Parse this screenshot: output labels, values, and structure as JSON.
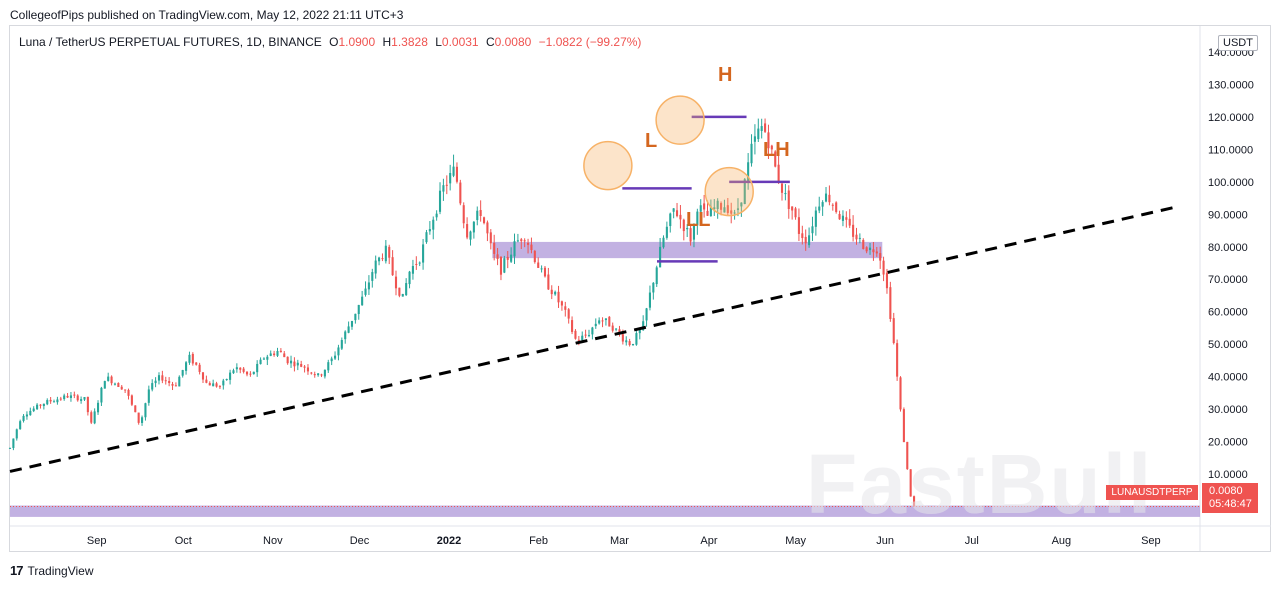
{
  "header": {
    "published_by": "CollegeofPips published on TradingView.com, May 12, 2022 21:11 UTC+3"
  },
  "legend": {
    "symbol": "Luna / TetherUS PERPETUAL FUTURES, 1D, BINANCE",
    "o_label": "O",
    "o_value": "1.0900",
    "h_label": "H",
    "h_value": "1.3828",
    "l_label": "L",
    "l_value": "0.0031",
    "c_label": "C",
    "c_value": "0.0080",
    "change": "−1.0822 (−99.27%)"
  },
  "axis": {
    "currency": "USDT"
  },
  "price_tag": {
    "symbol": "LUNAUSDTPERP",
    "price": "0.0080",
    "countdown": "05:48:47"
  },
  "footer": {
    "brand": "TradingView"
  },
  "watermark": "FastBull",
  "annotations": {
    "h": "H",
    "l": "L",
    "lh": "LH",
    "ll": "LL"
  },
  "colors": {
    "up": "#26a69a",
    "down": "#ef5350",
    "zone": "#b39ddb",
    "level": "#673ab7",
    "circle": "#f7b267",
    "label": "#d4661f"
  },
  "chart_data": {
    "type": "candlestick",
    "title": "Luna / TetherUS PERPETUAL FUTURES, 1D, BINANCE",
    "y_ticks": [
      "140.0000",
      "130.0000",
      "120.0000",
      "110.0000",
      "100.0000",
      "90.0000",
      "80.0000",
      "70.0000",
      "60.0000",
      "50.0000",
      "40.0000",
      "30.0000",
      "20.0000",
      "10.0000"
    ],
    "y_tick_values": [
      140,
      130,
      120,
      110,
      100,
      90,
      80,
      70,
      60,
      50,
      40,
      30,
      20,
      10
    ],
    "ylim": [
      -6,
      148
    ],
    "x_ticks": [
      "Sep",
      "Oct",
      "Nov",
      "Dec",
      "2022",
      "Feb",
      "Mar",
      "Apr",
      "May",
      "Jun",
      "Jul",
      "Aug",
      "Sep"
    ],
    "x_tick_days": [
      30,
      60,
      91,
      121,
      152,
      183,
      211,
      242,
      272,
      303,
      333,
      364,
      395
    ],
    "x_range_days": [
      0,
      412
    ],
    "anchors": [
      [
        0,
        18
      ],
      [
        4,
        28
      ],
      [
        12,
        32
      ],
      [
        20,
        34
      ],
      [
        26,
        33
      ],
      [
        28,
        25
      ],
      [
        33,
        40
      ],
      [
        40,
        36
      ],
      [
        45,
        25
      ],
      [
        48,
        36
      ],
      [
        52,
        40
      ],
      [
        57,
        37
      ],
      [
        62,
        46
      ],
      [
        65,
        43
      ],
      [
        68,
        38
      ],
      [
        73,
        37
      ],
      [
        78,
        43
      ],
      [
        83,
        40
      ],
      [
        88,
        46
      ],
      [
        93,
        48
      ],
      [
        96,
        45
      ],
      [
        102,
        43
      ],
      [
        107,
        40
      ],
      [
        112,
        46
      ],
      [
        118,
        57
      ],
      [
        123,
        66
      ],
      [
        126,
        74
      ],
      [
        130,
        79
      ],
      [
        133,
        70
      ],
      [
        136,
        64
      ],
      [
        138,
        72
      ],
      [
        142,
        77
      ],
      [
        146,
        88
      ],
      [
        150,
        98
      ],
      [
        154,
        104
      ],
      [
        158,
        84
      ],
      [
        163,
        91
      ],
      [
        167,
        78
      ],
      [
        170,
        73
      ],
      [
        175,
        81
      ],
      [
        178,
        84
      ],
      [
        182,
        76
      ],
      [
        185,
        70
      ],
      [
        188,
        66
      ],
      [
        192,
        60
      ],
      [
        196,
        51
      ],
      [
        200,
        53
      ],
      [
        204,
        58
      ],
      [
        208,
        56
      ],
      [
        212,
        52
      ],
      [
        215,
        50
      ],
      [
        219,
        55
      ],
      [
        222,
        67
      ],
      [
        226,
        82
      ],
      [
        230,
        92
      ],
      [
        233,
        87
      ],
      [
        236,
        82
      ],
      [
        238,
        93
      ],
      [
        241,
        89
      ],
      [
        244,
        92
      ],
      [
        248,
        93
      ],
      [
        251,
        89
      ],
      [
        254,
        98
      ],
      [
        257,
        111
      ],
      [
        260,
        117
      ],
      [
        262,
        115
      ],
      [
        265,
        104
      ],
      [
        268,
        96
      ],
      [
        271,
        91
      ],
      [
        273,
        85
      ],
      [
        276,
        82
      ],
      [
        279,
        91
      ],
      [
        281,
        96
      ],
      [
        284,
        95
      ],
      [
        287,
        90
      ],
      [
        290,
        86
      ],
      [
        293,
        83
      ],
      [
        295,
        81
      ],
      [
        298,
        79
      ],
      [
        300,
        80
      ],
      [
        302,
        75
      ],
      [
        304,
        65
      ],
      [
        306,
        50
      ],
      [
        308,
        32
      ],
      [
        310,
        16
      ],
      [
        312,
        2
      ],
      [
        313,
        0
      ]
    ],
    "candle_count": 268,
    "trendline": {
      "start": [
        0,
        10.8
      ],
      "end": [
        404,
        92.3
      ],
      "style": "dashed"
    },
    "zones": [
      {
        "name": "support-resistance-zone",
        "y_range": [
          76.5,
          81.5
        ],
        "x_range": [
          167,
          302
        ]
      },
      {
        "name": "current-price-zone",
        "y_range": [
          -3.2,
          0.3
        ],
        "x_range": [
          0,
          412
        ]
      }
    ],
    "levels": [
      {
        "name": "L",
        "price": 98,
        "x_range": [
          212,
          236
        ]
      },
      {
        "name": "H",
        "price": 120,
        "x_range": [
          236,
          255
        ]
      },
      {
        "name": "LH",
        "price": 100,
        "x_range": [
          249,
          270
        ]
      },
      {
        "name": "LL",
        "price": 75.5,
        "x_range": [
          224,
          245
        ]
      }
    ],
    "markers": [
      {
        "name": "L",
        "day": 207,
        "price": 105
      },
      {
        "name": "H",
        "day": 232,
        "price": 119
      },
      {
        "name": "LH",
        "day": 249,
        "price": 97
      }
    ],
    "last_price": 0.008
  }
}
